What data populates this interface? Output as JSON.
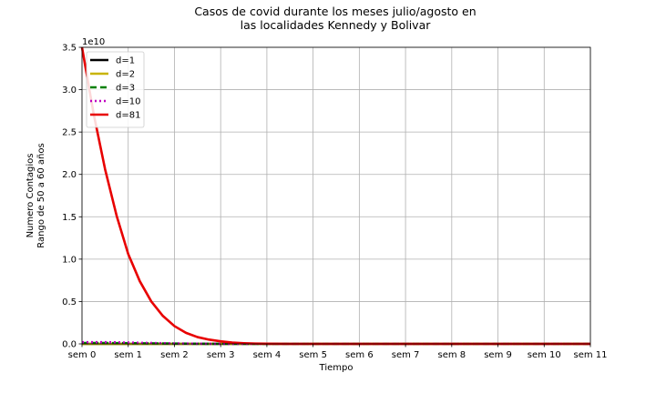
{
  "chart_data": {
    "type": "line",
    "title_lines": [
      "Casos de covid durante los meses julio/agosto en",
      "las localidades Kennedy y Bolivar"
    ],
    "xlabel": "Tiempo",
    "ylabel_lines": [
      "Numero Contagios",
      "Rango de 50 a 60 años"
    ],
    "scale_label": "1e10",
    "x_ticks": [
      {
        "value": 0,
        "label": "sem 0"
      },
      {
        "value": 1,
        "label": "sem 1"
      },
      {
        "value": 2,
        "label": "sem 2"
      },
      {
        "value": 3,
        "label": "sem 3"
      },
      {
        "value": 4,
        "label": "sem 4"
      },
      {
        "value": 5,
        "label": "sem 5"
      },
      {
        "value": 6,
        "label": "sem 6"
      },
      {
        "value": 7,
        "label": "sem 7"
      },
      {
        "value": 8,
        "label": "sem 8"
      },
      {
        "value": 9,
        "label": "sem 9"
      },
      {
        "value": 10,
        "label": "sem 10"
      },
      {
        "value": 11,
        "label": "sem 11"
      }
    ],
    "y_ticks": [
      {
        "value": 0.0,
        "label": "0.0"
      },
      {
        "value": 0.5,
        "label": "0.5"
      },
      {
        "value": 1.0,
        "label": "1.0"
      },
      {
        "value": 1.5,
        "label": "1.5"
      },
      {
        "value": 2.0,
        "label": "2.0"
      },
      {
        "value": 2.5,
        "label": "2.5"
      },
      {
        "value": 3.0,
        "label": "3.0"
      },
      {
        "value": 3.5,
        "label": "3.5"
      }
    ],
    "xlim": [
      0,
      11
    ],
    "ylim": [
      0,
      3.5
    ],
    "grid": true,
    "legend_position": "top-left",
    "series": [
      {
        "name": "d=1",
        "color": "#000000",
        "dash": "solid",
        "x": [
          0,
          1,
          2,
          3,
          4,
          11
        ],
        "y": [
          0.0,
          0.0,
          0.0,
          0.0,
          0.0,
          0.0
        ]
      },
      {
        "name": "d=2",
        "color": "#c8b400",
        "dash": "solid",
        "x": [
          0,
          1,
          2,
          3,
          4,
          11
        ],
        "y": [
          0.0,
          0.0,
          0.0,
          0.0,
          0.0,
          0.0
        ]
      },
      {
        "name": "d=3",
        "color": "#008000",
        "dash": "dashed",
        "x": [
          0,
          0.5,
          1,
          1.5,
          2,
          2.5,
          3,
          4,
          11
        ],
        "y": [
          0.01,
          0.01,
          0.008,
          0.006,
          0.004,
          0.002,
          0.0,
          0.0,
          0.0
        ]
      },
      {
        "name": "d=10",
        "color": "#c000c0",
        "dash": "dotted",
        "x": [
          0,
          0.5,
          1,
          1.5,
          2,
          2.5,
          3,
          4,
          11
        ],
        "y": [
          0.02,
          0.02,
          0.015,
          0.01,
          0.005,
          0.002,
          0.0,
          0.0,
          0.0
        ]
      },
      {
        "name": "d=81",
        "color": "#e80000",
        "dash": "solid",
        "x": [
          0,
          0.25,
          0.5,
          0.75,
          1.0,
          1.25,
          1.5,
          1.75,
          2.0,
          2.25,
          2.5,
          2.75,
          3.0,
          3.25,
          3.5,
          3.75,
          4.0,
          4.5,
          5.0,
          6.0,
          8.0,
          11.0
        ],
        "y": [
          3.5,
          2.72,
          2.06,
          1.51,
          1.06,
          0.74,
          0.5,
          0.33,
          0.21,
          0.13,
          0.08,
          0.05,
          0.03,
          0.015,
          0.008,
          0.004,
          0.002,
          0.0,
          0.0,
          0.0,
          0.0,
          0.0
        ]
      }
    ]
  }
}
